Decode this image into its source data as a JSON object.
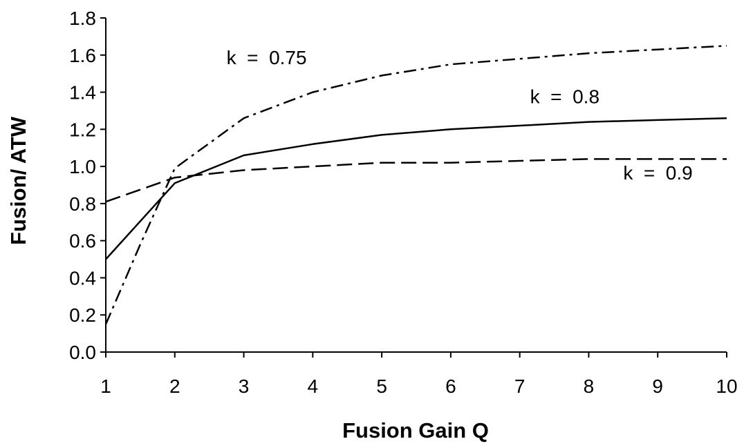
{
  "chart_data": {
    "type": "line",
    "title": "",
    "xlabel": "Fusion  Gain  Q",
    "ylabel": "Fusion/  ATW",
    "xlim": [
      1,
      10
    ],
    "ylim": [
      0,
      1.8
    ],
    "x_ticks": [
      "1",
      "2",
      "3",
      "4",
      "5",
      "6",
      "7",
      "8",
      "9",
      "10"
    ],
    "y_ticks": [
      "0.0",
      "0.2",
      "0.4",
      "0.6",
      "0.8",
      "1.0",
      "1.2",
      "1.4",
      "1.6",
      "1.8"
    ],
    "grid": false,
    "legend": "none",
    "series": [
      {
        "name": "k = 0.75",
        "line_style": "dash-dot",
        "color": "#000000",
        "x": [
          1,
          1.5,
          2,
          3,
          4,
          5,
          6,
          7,
          8,
          9,
          10
        ],
        "y": [
          0.15,
          0.58,
          0.99,
          1.26,
          1.4,
          1.49,
          1.55,
          1.58,
          1.61,
          1.63,
          1.65
        ]
      },
      {
        "name": "k = 0.8",
        "line_style": "solid",
        "color": "#000000",
        "x": [
          1,
          2,
          3,
          4,
          5,
          6,
          7,
          8,
          9,
          10
        ],
        "y": [
          0.5,
          0.91,
          1.06,
          1.12,
          1.17,
          1.2,
          1.22,
          1.24,
          1.25,
          1.26
        ]
      },
      {
        "name": "k = 0.9",
        "line_style": "dashed",
        "color": "#000000",
        "x": [
          1,
          2,
          3,
          4,
          5,
          6,
          7,
          8,
          9,
          10
        ],
        "y": [
          0.81,
          0.94,
          0.98,
          1.0,
          1.02,
          1.02,
          1.03,
          1.04,
          1.04,
          1.04
        ]
      }
    ],
    "annotations": [
      {
        "text": "k  =  0.75",
        "series": "k = 0.75",
        "x": 2.75,
        "y": 1.55
      },
      {
        "text": "k  =  0.8",
        "series": "k = 0.8",
        "x": 7.15,
        "y": 1.34
      },
      {
        "text": "k  =  0.9",
        "series": "k = 0.9",
        "x": 8.5,
        "y": 0.93
      }
    ]
  }
}
